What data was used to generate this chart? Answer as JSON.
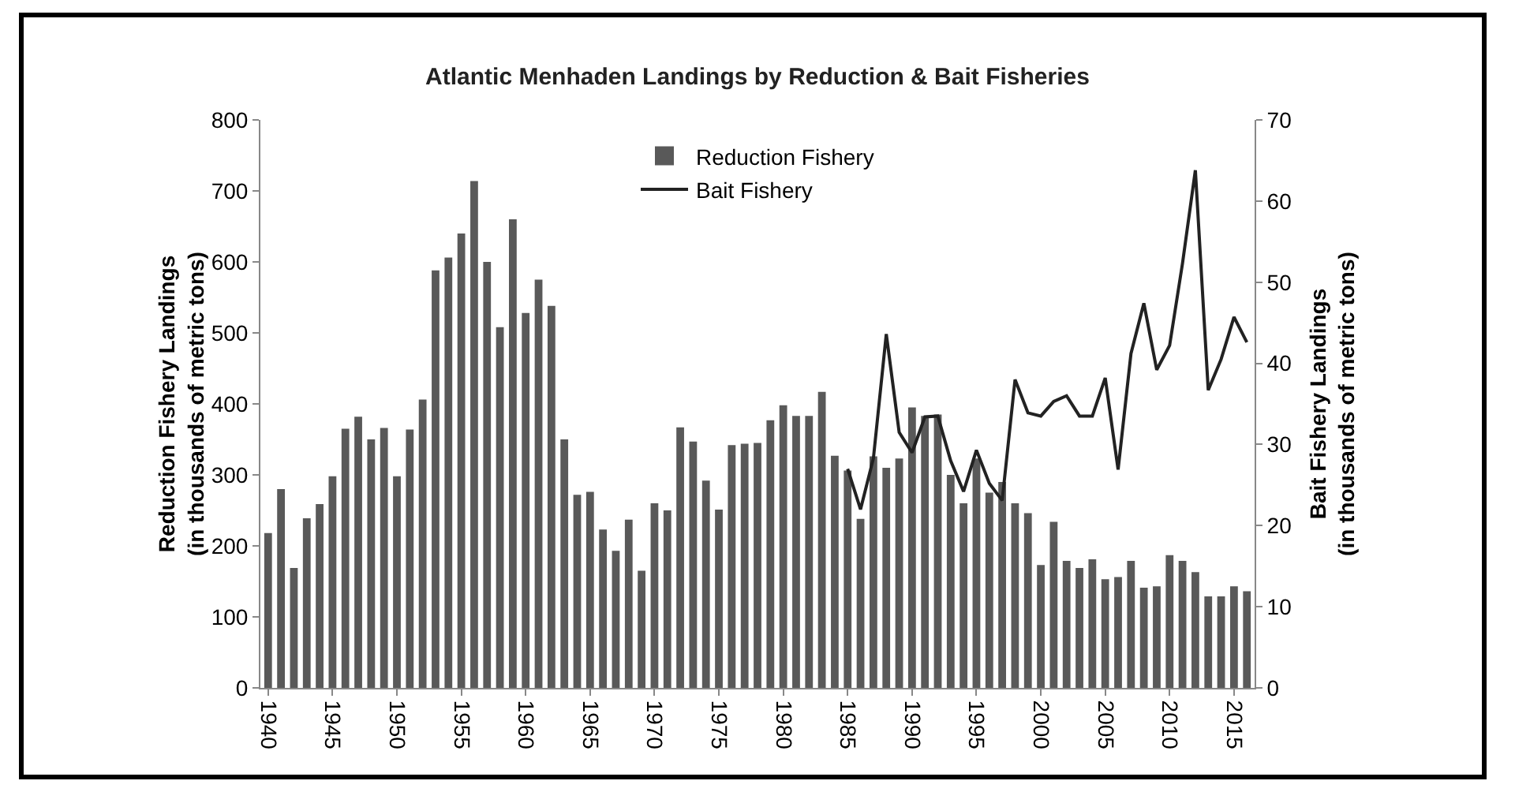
{
  "chart_data": {
    "type": "bar",
    "title": "Atlantic Menhaden Landings by Reduction & Bait Fisheries",
    "ylabel": "Reduction Fishery Landings\n(in thousands of metric tons)",
    "y2label": "Bait Fishery Landings\n(in thousands of metric tons)",
    "x": [
      1940,
      1941,
      1942,
      1943,
      1944,
      1945,
      1946,
      1947,
      1948,
      1949,
      1950,
      1951,
      1952,
      1953,
      1954,
      1955,
      1956,
      1957,
      1958,
      1959,
      1960,
      1961,
      1962,
      1963,
      1964,
      1965,
      1966,
      1967,
      1968,
      1969,
      1970,
      1971,
      1972,
      1973,
      1974,
      1975,
      1976,
      1977,
      1978,
      1979,
      1980,
      1981,
      1982,
      1983,
      1984,
      1985,
      1986,
      1987,
      1988,
      1989,
      1990,
      1991,
      1992,
      1993,
      1994,
      1995,
      1996,
      1997,
      1998,
      1999,
      2000,
      2001,
      2002,
      2003,
      2004,
      2005,
      2006,
      2007,
      2008,
      2009,
      2010,
      2011,
      2012,
      2013,
      2014,
      2015,
      2016
    ],
    "series": [
      {
        "name": "Reduction Fishery",
        "color": "#595959",
        "values": [
          218,
          280,
          169,
          239,
          259,
          298,
          365,
          382,
          350,
          366,
          298,
          364,
          406,
          588,
          606,
          640,
          714,
          600,
          508,
          660,
          528,
          575,
          538,
          350,
          272,
          276,
          223,
          193,
          237,
          165,
          260,
          250,
          367,
          347,
          292,
          251,
          342,
          344,
          345,
          377,
          398,
          383,
          383,
          417,
          327,
          306,
          238,
          326,
          310,
          323,
          395,
          383,
          385,
          300,
          260,
          323,
          275,
          290,
          260,
          246,
          173,
          234,
          179,
          169,
          181,
          153,
          156,
          179,
          141,
          143,
          187,
          179,
          163,
          129,
          129,
          143,
          136
        ]
      },
      {
        "name": "Bait Fishery",
        "type": "line",
        "axis": "y2",
        "color": "#222222",
        "x": [
          1985,
          1986,
          1987,
          1988,
          1989,
          1990,
          1991,
          1992,
          1993,
          1994,
          1995,
          1996,
          1997,
          1998,
          1999,
          2000,
          2001,
          2002,
          2003,
          2004,
          2005,
          2006,
          2007,
          2008,
          2009,
          2010,
          2011,
          2012,
          2013,
          2014,
          2015,
          2016
        ],
        "values": [
          27,
          22,
          28.3,
          43.6,
          31.5,
          29,
          33.4,
          33.5,
          28,
          24.2,
          29.3,
          25.2,
          23.1,
          38,
          33.9,
          33.5,
          35.3,
          36,
          33.5,
          33.5,
          38.2,
          26.9,
          41.2,
          47.4,
          39.2,
          42.2,
          52.3,
          63.8,
          36.7,
          40.5,
          45.7,
          42.6
        ]
      }
    ],
    "xlim": [
      1939.4,
      2016.6
    ],
    "xticks": [
      1940,
      1945,
      1950,
      1955,
      1960,
      1965,
      1970,
      1975,
      1980,
      1985,
      1990,
      1995,
      2000,
      2005,
      2010,
      2015
    ],
    "ylim": [
      0,
      800
    ],
    "yticks": [
      0,
      100,
      200,
      300,
      400,
      500,
      600,
      700,
      800
    ],
    "y2lim": [
      0,
      70
    ],
    "y2ticks": [
      0,
      10,
      20,
      30,
      40,
      50,
      60,
      70
    ],
    "grid": false,
    "legend": "top"
  }
}
